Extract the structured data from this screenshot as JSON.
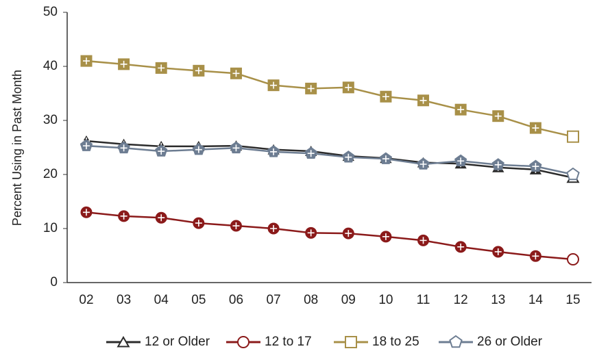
{
  "chart_data": {
    "type": "line",
    "y_label": "Percent Using in Past Month",
    "categories": [
      "02",
      "03",
      "04",
      "05",
      "06",
      "07",
      "08",
      "09",
      "10",
      "11",
      "12",
      "13",
      "14",
      "15"
    ],
    "ylim": [
      0,
      50
    ],
    "yticks": [
      0,
      10,
      20,
      30,
      40,
      50
    ],
    "grid": false,
    "series": [
      {
        "name": "12 or Older",
        "color": "#2b2b2b",
        "marker": "triangle",
        "values": [
          26.2,
          25.6,
          25.2,
          25.2,
          25.3,
          24.6,
          24.3,
          23.4,
          23.0,
          22.2,
          22.0,
          21.3,
          20.9,
          19.4
        ]
      },
      {
        "name": "12 to 17",
        "color": "#8b1a1a",
        "marker": "circle",
        "values": [
          13.0,
          12.3,
          12.0,
          11.0,
          10.5,
          10.0,
          9.2,
          9.1,
          8.5,
          7.8,
          6.6,
          5.7,
          4.9,
          4.3
        ]
      },
      {
        "name": "18 to 25",
        "color": "#a89048",
        "marker": "square",
        "values": [
          41.0,
          40.4,
          39.7,
          39.2,
          38.7,
          36.5,
          35.9,
          36.1,
          34.4,
          33.7,
          32.0,
          30.8,
          28.6,
          27.0
        ]
      },
      {
        "name": "26 or Older",
        "color": "#6d7d92",
        "marker": "pentagon",
        "values": [
          25.3,
          24.9,
          24.3,
          24.6,
          24.9,
          24.2,
          23.9,
          23.2,
          22.9,
          21.9,
          22.5,
          21.8,
          21.5,
          20.0
        ]
      }
    ]
  }
}
